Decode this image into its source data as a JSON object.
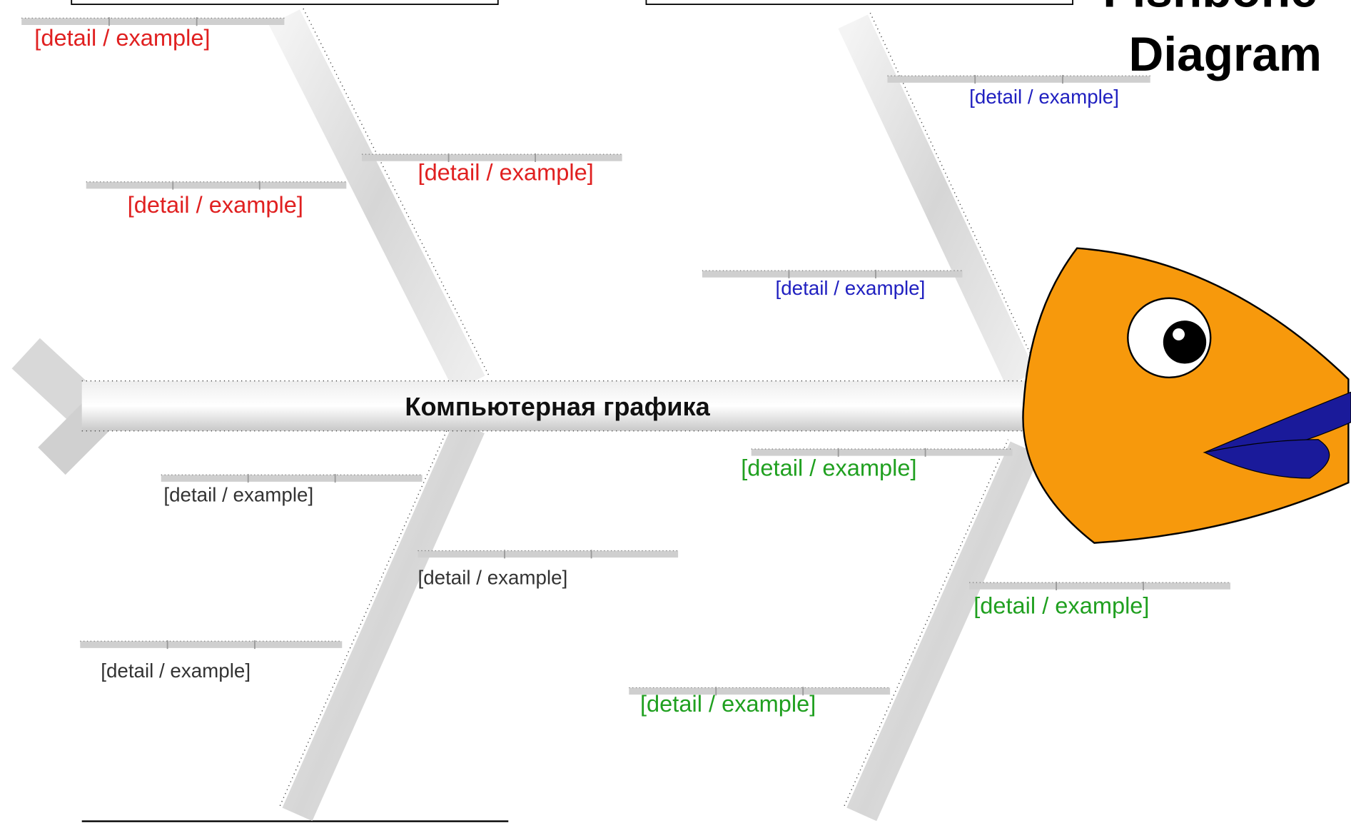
{
  "title": {
    "lines": [
      "Fishbone",
      "Diagram"
    ]
  },
  "spine": {
    "label": "Компьютерная графика"
  },
  "details": [
    {
      "text": "[detail / example]",
      "color": "#e02020"
    },
    {
      "text": "[detail / example]",
      "color": "#e02020"
    },
    {
      "text": "[detail / example]",
      "color": "#e02020"
    },
    {
      "text": "[detail / example]",
      "color": "#2020c0"
    },
    {
      "text": "[detail / example]",
      "color": "#2020c0"
    },
    {
      "text": "[detail / example]",
      "color": "#333333"
    },
    {
      "text": "[detail / example]",
      "color": "#333333"
    },
    {
      "text": "[detail / example]",
      "color": "#333333"
    },
    {
      "text": "[detail / example]",
      "color": "#20a020"
    },
    {
      "text": "[detail / example]",
      "color": "#20a020"
    },
    {
      "text": "[detail / example]",
      "color": "#20a020"
    }
  ]
}
